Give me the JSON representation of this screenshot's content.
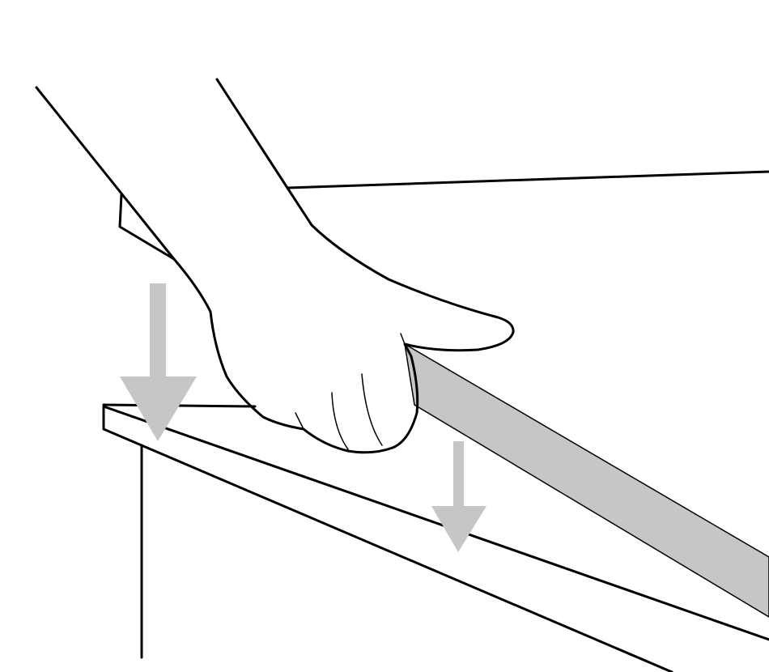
{
  "figure": {
    "description_kind": "instructional illustration",
    "colors": {
      "line": "#000000",
      "arrow": "#c6c6c6",
      "strip": "#c6c6c6",
      "background": "#ffffff"
    },
    "icons": [
      "arrow-down-icon",
      "arrow-down-icon"
    ]
  }
}
